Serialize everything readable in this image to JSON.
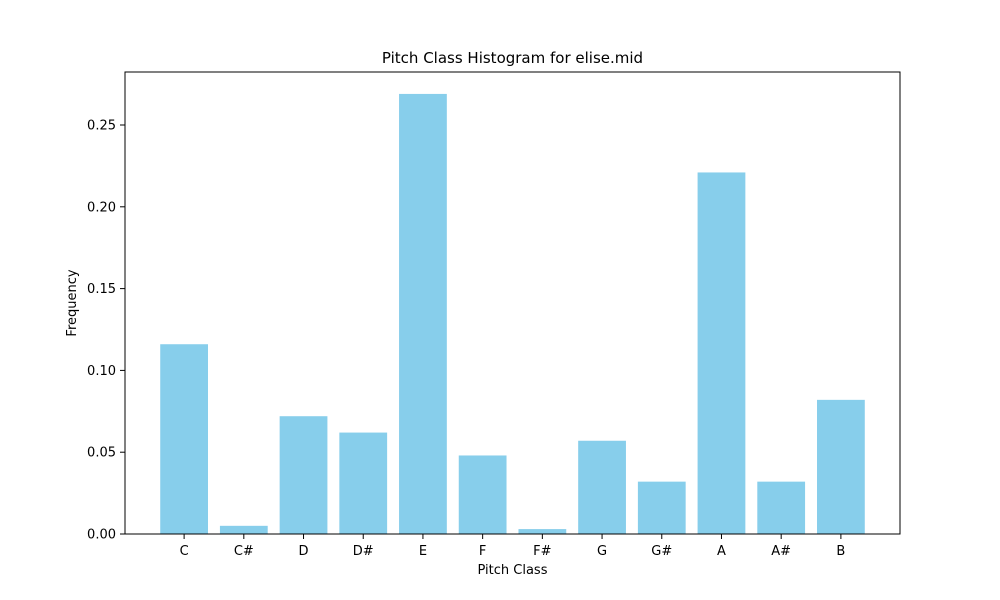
{
  "chart_data": {
    "type": "bar",
    "title": "Pitch Class Histogram for elise.mid",
    "xlabel": "Pitch Class",
    "ylabel": "Frequency",
    "categories": [
      "C",
      "C#",
      "D",
      "D#",
      "E",
      "F",
      "F#",
      "G",
      "G#",
      "A",
      "A#",
      "B"
    ],
    "values": [
      0.116,
      0.005,
      0.072,
      0.062,
      0.269,
      0.048,
      0.003,
      0.057,
      0.032,
      0.221,
      0.032,
      0.082
    ],
    "ylim": [
      0,
      0.2824
    ],
    "yticks": [
      0.0,
      0.05,
      0.1,
      0.15,
      0.2,
      0.25
    ],
    "ytick_labels": [
      "0.00",
      "0.05",
      "0.10",
      "0.15",
      "0.20",
      "0.25"
    ],
    "bar_color": "#87ceeb",
    "grid": false,
    "legend": "none"
  }
}
